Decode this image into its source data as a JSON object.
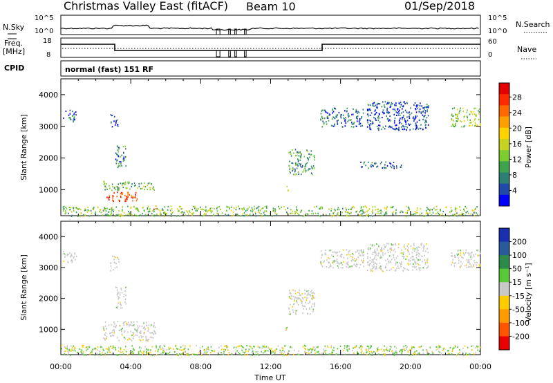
{
  "header": {
    "station": "Christmas Valley East (fitACF)",
    "beam": "Beam 10",
    "date": "01/Sep/2018"
  },
  "params": {
    "nsky_label": "N.Sky",
    "nsearch_label": "N.Search",
    "freq_label": "Freq.",
    "freq_unit": "[MHz]",
    "nave_label": "Nave",
    "cpid_label": "CPID",
    "nsky_ticks": [
      "10^5",
      "10^0"
    ],
    "nsearch_ticks": [
      "10^5",
      "10^0"
    ],
    "freq_ticks": [
      "18",
      "8"
    ],
    "nave_ticks": [
      "60",
      "0"
    ],
    "cpid_text": "normal (fast) 151 RF"
  },
  "chart_data": [
    {
      "type": "heatmap",
      "name": "power",
      "ylabel": "Slant Range [km]",
      "xlabel": "",
      "ylim": [
        180,
        4500
      ],
      "yticks": [
        "1000",
        "2000",
        "3000",
        "4000"
      ],
      "xlim_hours": [
        0,
        24
      ],
      "xticks": [
        "00:00",
        "04:00",
        "08:00",
        "12:00",
        "16:00",
        "20:00",
        "00:00"
      ],
      "colorbar": {
        "label": "Power [dB]",
        "ticks": [
          "4",
          "8",
          "12",
          "16",
          "20",
          "24",
          "28"
        ],
        "colors": [
          "#0000ff",
          "#1f4aa8",
          "#2e7f73",
          "#3fa34d",
          "#7ccd30",
          "#c6d21f",
          "#ffd400",
          "#ffa000",
          "#ff6a00",
          "#ff2a00",
          "#e00000"
        ]
      },
      "echo_regions": [
        {
          "t_start": 0.1,
          "t_end": 0.9,
          "r_start": 3150,
          "r_end": 3550,
          "level": 6
        },
        {
          "t_start": 2.8,
          "t_end": 3.3,
          "r_start": 2900,
          "r_end": 3400,
          "level": 4
        },
        {
          "t_start": 3.1,
          "t_end": 3.7,
          "r_start": 1700,
          "r_end": 2400,
          "level": 8
        },
        {
          "t_start": 2.4,
          "t_end": 5.4,
          "r_start": 1000,
          "r_end": 1280,
          "level": 12
        },
        {
          "t_start": 2.6,
          "t_end": 4.4,
          "r_start": 650,
          "r_end": 950,
          "level": 26
        },
        {
          "t_start": 5.2,
          "t_end": 5.6,
          "r_start": 400,
          "r_end": 520,
          "level": 27
        },
        {
          "t_start": 12.6,
          "t_end": 13.0,
          "r_start": 950,
          "r_end": 1150,
          "level": 14
        },
        {
          "t_start": 13.0,
          "t_end": 14.5,
          "r_start": 1500,
          "r_end": 2300,
          "level": 10
        },
        {
          "t_start": 14.8,
          "t_end": 17.3,
          "r_start": 3000,
          "r_end": 3600,
          "level": 7
        },
        {
          "t_start": 17.5,
          "t_end": 21.0,
          "r_start": 2900,
          "r_end": 3800,
          "level": 5
        },
        {
          "t_start": 17.0,
          "t_end": 19.5,
          "r_start": 1700,
          "r_end": 1900,
          "level": 6
        },
        {
          "t_start": 22.3,
          "t_end": 24.0,
          "r_start": 3000,
          "r_end": 3600,
          "level": 14
        },
        {
          "t_start": 0.0,
          "t_end": 24.0,
          "r_start": 180,
          "r_end": 500,
          "level": 13
        }
      ]
    },
    {
      "type": "heatmap",
      "name": "velocity",
      "ylabel": "Slant Range [km]",
      "xlabel": "Time UT",
      "ylim": [
        180,
        4500
      ],
      "yticks": [
        "1000",
        "2000",
        "3000",
        "4000"
      ],
      "xlim_hours": [
        0,
        24
      ],
      "xticks": [
        "00:00",
        "04:00",
        "08:00",
        "12:00",
        "16:00",
        "20:00",
        "00:00"
      ],
      "colorbar": {
        "label": "Velocity [m s⁻¹]",
        "ticks": [
          "200",
          "100",
          "50",
          "15",
          "-15",
          "-50",
          "-100",
          "-200"
        ],
        "colors": [
          "#1a2fb0",
          "#2a5a9a",
          "#2e8a4a",
          "#58c838",
          "#c8c8c8",
          "#ffcc00",
          "#ff9a00",
          "#ff5500",
          "#e80000"
        ]
      },
      "echo_regions": [
        {
          "t_start": 0.1,
          "t_end": 0.9,
          "r_start": 3150,
          "r_end": 3550,
          "velocity": 0
        },
        {
          "t_start": 2.8,
          "t_end": 3.3,
          "r_start": 2900,
          "r_end": 3400,
          "velocity": 0
        },
        {
          "t_start": 3.1,
          "t_end": 3.7,
          "r_start": 1700,
          "r_end": 2400,
          "velocity": 0
        },
        {
          "t_start": 2.4,
          "t_end": 5.4,
          "r_start": 650,
          "r_end": 1280,
          "velocity": 0
        },
        {
          "t_start": 12.6,
          "t_end": 13.0,
          "r_start": 950,
          "r_end": 1150,
          "velocity": 30
        },
        {
          "t_start": 13.0,
          "t_end": 14.5,
          "r_start": 1500,
          "r_end": 2300,
          "velocity": 0
        },
        {
          "t_start": 14.8,
          "t_end": 17.3,
          "r_start": 3000,
          "r_end": 3600,
          "velocity": 0
        },
        {
          "t_start": 17.5,
          "t_end": 21.0,
          "r_start": 2900,
          "r_end": 3800,
          "velocity": 0
        },
        {
          "t_start": 22.3,
          "t_end": 24.0,
          "r_start": 3000,
          "r_end": 3600,
          "velocity": 0
        },
        {
          "t_start": 0.0,
          "t_end": 24.0,
          "r_start": 180,
          "r_end": 500,
          "velocity": 25
        }
      ]
    }
  ]
}
